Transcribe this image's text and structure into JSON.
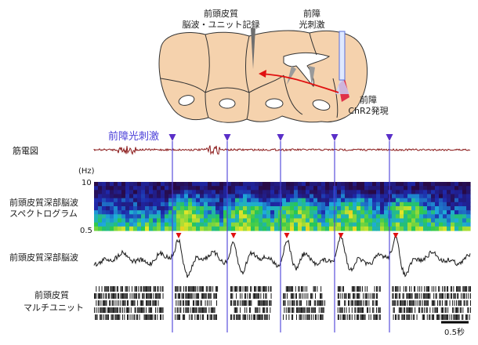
{
  "brain": {
    "pfc_recording_label_line1": "前頭皮質",
    "pfc_recording_label_line2": "脳波・ユニット記録",
    "claustrum_stim_label_line1": "前障",
    "claustrum_stim_label_line2": "光刺激",
    "claustrum_expr_label_line1": "前障",
    "claustrum_expr_label_line2": "ChR2発現"
  },
  "stim": {
    "label": "前障光刺激",
    "count": 5
  },
  "rows": {
    "emg_label": "筋電図",
    "spectrogram_label_line1": "前頭皮質深部脳波",
    "spectrogram_label_line2": "スペクトログラム",
    "spectrogram_unit": "(Hz)",
    "spectrogram_top": "10",
    "spectrogram_bottom": "0.5",
    "lfp_label": "前頭皮質深部脳波",
    "mua_label_line1": "前頭皮質",
    "mua_label_line2": "マルチユニット"
  },
  "scale_bar": {
    "label": "0.5秒"
  },
  "colors": {
    "brain_fill": "#f5d2ad",
    "stim_line": "#4a3fd8",
    "stim_marker": "#5a2fc8",
    "response_marker": "#e01010",
    "emg_trace": "#8b1a1a",
    "expression_site": "#e0304a"
  }
}
